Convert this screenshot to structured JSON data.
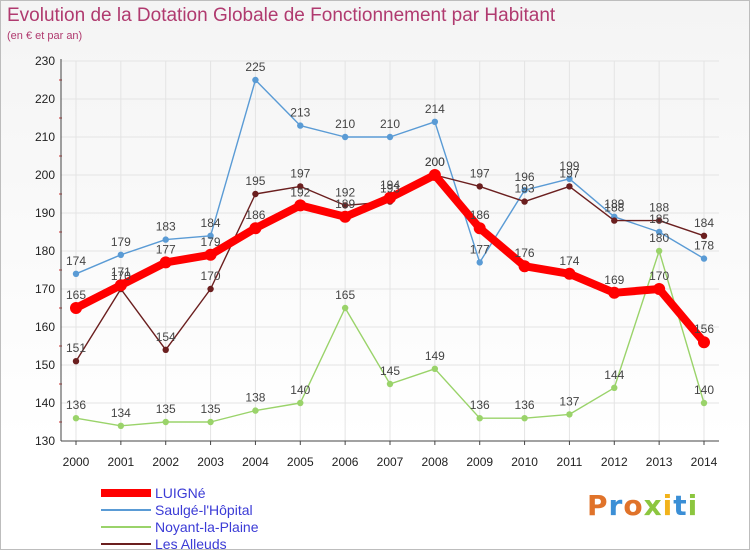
{
  "title": "Evolution de la Dotation Globale de Fonctionnement par Habitant",
  "subtitle": "(en € et par an)",
  "logo": {
    "text": "Proxiti"
  },
  "colors": {
    "luigne": "#ff0000",
    "saulge": "#5a9bd5",
    "noyant": "#9ad36a",
    "alleuds": "#6b1f1f",
    "axis": "#444444",
    "grid": "#e4e4e4",
    "ticklabel": "#222222",
    "datalabel": "#444444"
  },
  "chart_data": {
    "type": "line",
    "title": "Evolution de la Dotation Globale de Fonctionnement par Habitant",
    "subtitle": "(en € et par an)",
    "xlabel": "",
    "ylabel": "",
    "ylim": [
      130,
      230
    ],
    "yticks": [
      130,
      140,
      150,
      160,
      170,
      180,
      190,
      200,
      210,
      220,
      230
    ],
    "grid": true,
    "legend": "bottom-left",
    "x": [
      "2000",
      "2001",
      "2002",
      "2003",
      "2004",
      "2005",
      "2006",
      "2007",
      "2008",
      "2009",
      "2010",
      "2011",
      "2012",
      "2013",
      "2014"
    ],
    "series": [
      {
        "name": "LUIGNé",
        "key": "luigne",
        "values": [
          165,
          171,
          177,
          179,
          186,
          192,
          189,
          194,
          200,
          186,
          176,
          174,
          169,
          170,
          156
        ]
      },
      {
        "name": "Saulgé-l'Hôpital",
        "key": "saulge",
        "values": [
          174,
          179,
          183,
          184,
          225,
          213,
          210,
          210,
          214,
          177,
          196,
          199,
          189,
          185,
          178
        ]
      },
      {
        "name": "Noyant-la-Plaine",
        "key": "noyant",
        "values": [
          136,
          134,
          135,
          135,
          138,
          140,
          165,
          145,
          149,
          136,
          136,
          137,
          144,
          180,
          140
        ]
      },
      {
        "name": "Les Alleuds",
        "key": "alleuds",
        "values": [
          151,
          170,
          154,
          170,
          195,
          197,
          192,
          193,
          200,
          197,
          193,
          197,
          188,
          188,
          184
        ]
      }
    ]
  }
}
